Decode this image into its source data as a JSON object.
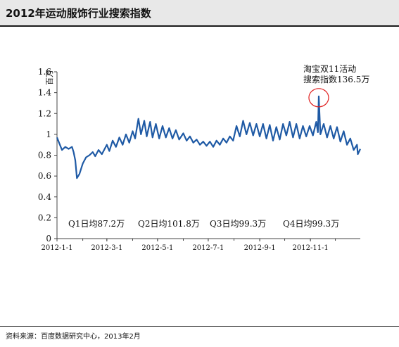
{
  "header": {
    "title": "2012年运动服饰行业搜索指数"
  },
  "footer": {
    "source": "资料来源：百度数据研究中心，2013年2月"
  },
  "colors": {
    "line": "#1f5aa5",
    "highlight": "#e02020",
    "axis": "#444444",
    "header_bg": "#e8e8e8"
  },
  "chart_data": {
    "type": "line",
    "title": "",
    "ylabel": "百万",
    "xlabel": "",
    "ylim": [
      0,
      1.6
    ],
    "yticks": [
      0,
      0.2,
      0.4,
      0.6,
      0.8,
      1,
      1.2,
      1.4,
      1.6
    ],
    "ytick_labels": [
      "0",
      "0.2",
      "0.4",
      "0.6",
      "0.8",
      "1",
      "1.2",
      "1.4",
      "1.6"
    ],
    "x_start": "2012-1-1",
    "x_end": "2012-12-31",
    "xtick_labels": [
      "2012-1-1",
      "2012-3-1",
      "2012-5-1",
      "2012-7-1",
      "2012-9-1",
      "2012-11-1"
    ],
    "grid": false,
    "series": [
      {
        "name": "",
        "points": [
          [
            "2012-01-01",
            0.97
          ],
          [
            "2012-01-04",
            0.91
          ],
          [
            "2012-01-07",
            0.85
          ],
          [
            "2012-01-11",
            0.88
          ],
          [
            "2012-01-15",
            0.86
          ],
          [
            "2012-01-19",
            0.88
          ],
          [
            "2012-01-21",
            0.83
          ],
          [
            "2012-01-23",
            0.75
          ],
          [
            "2012-01-25",
            0.58
          ],
          [
            "2012-01-28",
            0.62
          ],
          [
            "2012-02-01",
            0.72
          ],
          [
            "2012-02-05",
            0.78
          ],
          [
            "2012-02-09",
            0.8
          ],
          [
            "2012-02-13",
            0.83
          ],
          [
            "2012-02-16",
            0.79
          ],
          [
            "2012-02-20",
            0.85
          ],
          [
            "2012-02-24",
            0.81
          ],
          [
            "2012-03-01",
            0.9
          ],
          [
            "2012-03-04",
            0.84
          ],
          [
            "2012-03-08",
            0.94
          ],
          [
            "2012-03-12",
            0.88
          ],
          [
            "2012-03-16",
            0.97
          ],
          [
            "2012-03-20",
            0.9
          ],
          [
            "2012-03-24",
            1.0
          ],
          [
            "2012-03-28",
            0.92
          ],
          [
            "2012-04-01",
            1.03
          ],
          [
            "2012-04-04",
            0.96
          ],
          [
            "2012-04-08",
            1.15
          ],
          [
            "2012-04-11",
            1.0
          ],
          [
            "2012-04-15",
            1.13
          ],
          [
            "2012-04-18",
            0.98
          ],
          [
            "2012-04-22",
            1.12
          ],
          [
            "2012-04-25",
            0.97
          ],
          [
            "2012-04-29",
            1.1
          ],
          [
            "2012-05-03",
            0.96
          ],
          [
            "2012-05-07",
            1.08
          ],
          [
            "2012-05-11",
            0.97
          ],
          [
            "2012-05-15",
            1.06
          ],
          [
            "2012-05-19",
            0.96
          ],
          [
            "2012-05-23",
            1.04
          ],
          [
            "2012-05-27",
            0.95
          ],
          [
            "2012-06-01",
            1.01
          ],
          [
            "2012-06-05",
            0.94
          ],
          [
            "2012-06-09",
            0.98
          ],
          [
            "2012-06-13",
            0.92
          ],
          [
            "2012-06-17",
            0.95
          ],
          [
            "2012-06-21",
            0.9
          ],
          [
            "2012-06-25",
            0.93
          ],
          [
            "2012-06-29",
            0.89
          ],
          [
            "2012-07-03",
            0.93
          ],
          [
            "2012-07-07",
            0.88
          ],
          [
            "2012-07-11",
            0.94
          ],
          [
            "2012-07-15",
            0.9
          ],
          [
            "2012-07-19",
            0.96
          ],
          [
            "2012-07-23",
            0.92
          ],
          [
            "2012-07-27",
            0.98
          ],
          [
            "2012-07-31",
            0.94
          ],
          [
            "2012-08-04",
            1.08
          ],
          [
            "2012-08-08",
            0.98
          ],
          [
            "2012-08-12",
            1.13
          ],
          [
            "2012-08-16",
            1.0
          ],
          [
            "2012-08-20",
            1.11
          ],
          [
            "2012-08-24",
            0.99
          ],
          [
            "2012-08-28",
            1.1
          ],
          [
            "2012-09-01",
            0.98
          ],
          [
            "2012-09-05",
            1.1
          ],
          [
            "2012-09-09",
            0.96
          ],
          [
            "2012-09-13",
            1.09
          ],
          [
            "2012-09-17",
            0.94
          ],
          [
            "2012-09-21",
            1.07
          ],
          [
            "2012-09-25",
            0.95
          ],
          [
            "2012-09-29",
            1.1
          ],
          [
            "2012-10-03",
            0.99
          ],
          [
            "2012-10-07",
            1.12
          ],
          [
            "2012-10-11",
            0.97
          ],
          [
            "2012-10-15",
            1.1
          ],
          [
            "2012-10-19",
            0.96
          ],
          [
            "2012-10-23",
            1.08
          ],
          [
            "2012-10-27",
            0.98
          ],
          [
            "2012-10-31",
            1.08
          ],
          [
            "2012-11-04",
            0.99
          ],
          [
            "2012-11-08",
            1.12
          ],
          [
            "2012-11-10",
            1.02
          ],
          [
            "2012-11-11",
            1.365
          ],
          [
            "2012-11-13",
            1.0
          ],
          [
            "2012-11-17",
            1.1
          ],
          [
            "2012-11-21",
            0.97
          ],
          [
            "2012-11-25",
            1.08
          ],
          [
            "2012-11-29",
            0.96
          ],
          [
            "2012-12-03",
            1.07
          ],
          [
            "2012-12-07",
            0.93
          ],
          [
            "2012-12-11",
            1.03
          ],
          [
            "2012-12-15",
            0.9
          ],
          [
            "2012-12-19",
            0.96
          ],
          [
            "2012-12-23",
            0.85
          ],
          [
            "2012-12-27",
            0.9
          ],
          [
            "2012-12-28",
            0.81
          ],
          [
            "2012-12-31",
            0.86
          ]
        ]
      }
    ],
    "peak": {
      "date": "2012-11-11",
      "value": 1.365
    },
    "annotations": {
      "peak_line1": "淘宝双11活动",
      "peak_line2": "搜索指数136.5万",
      "quarters": [
        "Q1日均87.2万",
        "Q2日均101.8万",
        "Q3日均99.3万",
        "Q4日均99.3万"
      ]
    }
  }
}
